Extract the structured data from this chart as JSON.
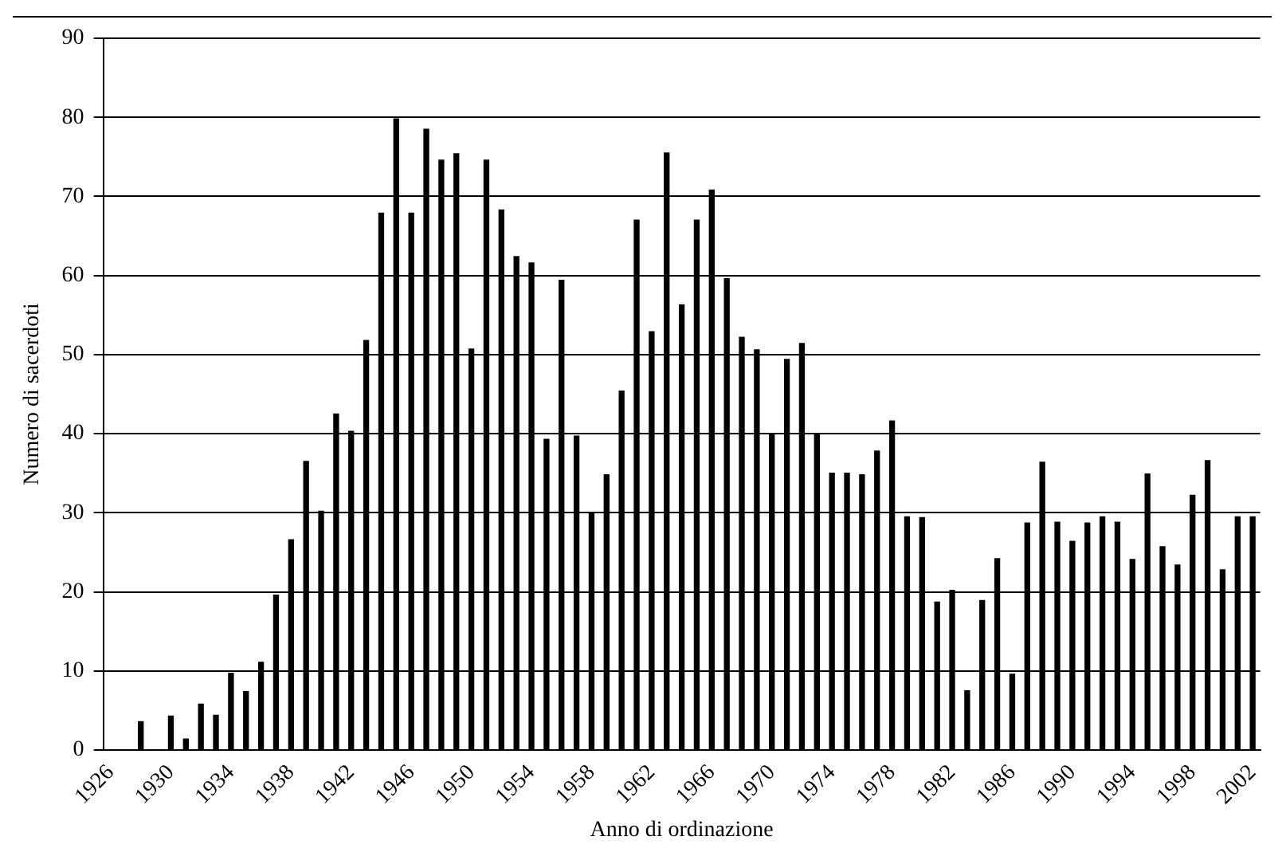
{
  "chart_data": {
    "type": "bar",
    "xlabel": "Anno di ordinazione",
    "ylabel": "Numero di sacerdoti",
    "categories": [
      "1926",
      null,
      null,
      null,
      "1930",
      null,
      null,
      null,
      "1934",
      null,
      null,
      null,
      "1938",
      null,
      null,
      null,
      "1942",
      null,
      null,
      null,
      "1946",
      null,
      null,
      null,
      "1950",
      null,
      null,
      null,
      "1954",
      null,
      null,
      null,
      "1958",
      null,
      null,
      null,
      "1962",
      null,
      null,
      null,
      "1966",
      null,
      null,
      null,
      "1970",
      null,
      null,
      null,
      "1974",
      null,
      null,
      null,
      "1978",
      null,
      null,
      null,
      "1982",
      null,
      null,
      null,
      "1986",
      null,
      null,
      null,
      "1990",
      null,
      null,
      null,
      "1994",
      null,
      null,
      null,
      "1998",
      null,
      null,
      null,
      "2002"
    ],
    "values": [
      null,
      null,
      3.6,
      null,
      4.3,
      1.4,
      5.8,
      4.4,
      9.7,
      7.4,
      11.1,
      19.6,
      26.6,
      36.5,
      30.2,
      42.5,
      40.3,
      51.8,
      67.9,
      79.8,
      67.9,
      78.5,
      74.6,
      75.4,
      50.7,
      74.6,
      68.3,
      62.4,
      61.6,
      39.3,
      59.4,
      39.7,
      29.9,
      34.8,
      45.4,
      67,
      52.9,
      75.5,
      56.3,
      67,
      70.8,
      59.6,
      52.2,
      50.6,
      40,
      49.4,
      51.4,
      40,
      35,
      35,
      34.8,
      37.8,
      41.6,
      29.5,
      29.4,
      18.7,
      20.2,
      7.5,
      18.9,
      24.2,
      9.6,
      28.7,
      36.4,
      28.8,
      26.4,
      28.7,
      29.5,
      28.8,
      24.1,
      34.9,
      25.7,
      23.4,
      32.2,
      36.6,
      22.8,
      29.5,
      29.5
    ],
    "color": "#000000",
    "ylim": [
      0,
      90
    ],
    "yticks": [
      0,
      10,
      20,
      30,
      40,
      50,
      60,
      70,
      80,
      90
    ],
    "grid": "y",
    "legend": false
  }
}
